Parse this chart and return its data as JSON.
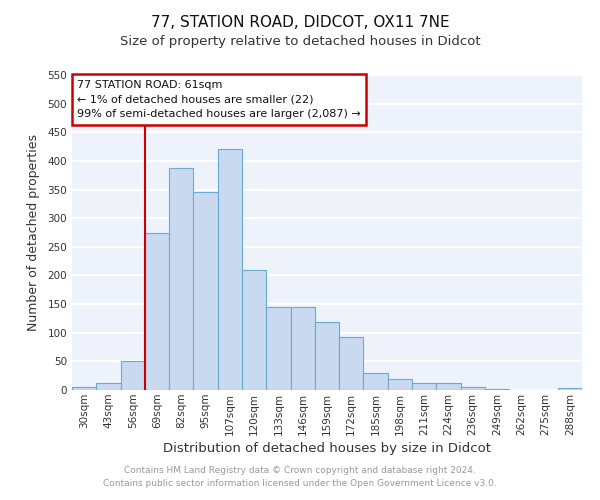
{
  "title": "77, STATION ROAD, DIDCOT, OX11 7NE",
  "subtitle": "Size of property relative to detached houses in Didcot",
  "xlabel": "Distribution of detached houses by size in Didcot",
  "ylabel": "Number of detached properties",
  "categories": [
    "30sqm",
    "43sqm",
    "56sqm",
    "69sqm",
    "82sqm",
    "95sqm",
    "107sqm",
    "120sqm",
    "133sqm",
    "146sqm",
    "159sqm",
    "172sqm",
    "185sqm",
    "198sqm",
    "211sqm",
    "224sqm",
    "236sqm",
    "249sqm",
    "262sqm",
    "275sqm",
    "288sqm"
  ],
  "values": [
    5,
    12,
    50,
    275,
    388,
    345,
    420,
    210,
    145,
    145,
    118,
    92,
    30,
    20,
    12,
    12,
    5,
    2,
    0,
    0,
    3
  ],
  "bar_color": "#c8d9f0",
  "bar_edge_color": "#6aaad4",
  "red_line_x": 2.5,
  "annotation_title": "77 STATION ROAD: 61sqm",
  "annotation_line1": "← 1% of detached houses are smaller (22)",
  "annotation_line2": "99% of semi-detached houses are larger (2,087) →",
  "annotation_box_color": "#ffffff",
  "annotation_box_edge": "#cc0000",
  "red_line_color": "#cc0000",
  "ylim": [
    0,
    550
  ],
  "yticks": [
    0,
    50,
    100,
    150,
    200,
    250,
    300,
    350,
    400,
    450,
    500,
    550
  ],
  "footer1": "Contains HM Land Registry data © Crown copyright and database right 2024.",
  "footer2": "Contains public sector information licensed under the Open Government Licence v3.0.",
  "bg_color": "#edf2fb",
  "grid_color": "#ffffff",
  "title_fontsize": 11,
  "subtitle_fontsize": 9.5,
  "xlabel_fontsize": 9.5,
  "ylabel_fontsize": 9,
  "tick_fontsize": 7.5,
  "footer_fontsize": 6.5
}
